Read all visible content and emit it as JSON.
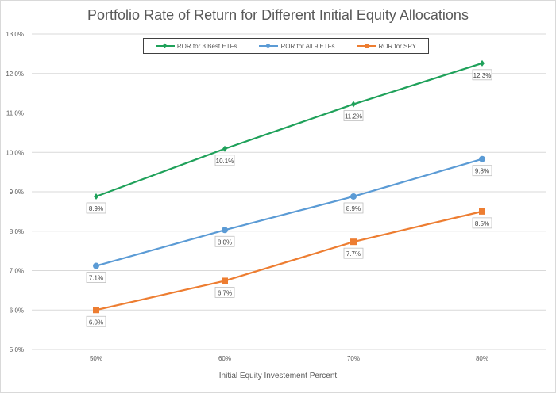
{
  "chart_data": {
    "type": "line",
    "title": "Portfolio Rate of Return for Different Initial Equity Allocations",
    "xlabel": "Initial Equity Investement Percent",
    "ylabel": "",
    "categories": [
      "50%",
      "60%",
      "70%",
      "80%"
    ],
    "ylim": [
      5.0,
      13.0
    ],
    "yticks": [
      "5.0%",
      "6.0%",
      "7.0%",
      "8.0%",
      "9.0%",
      "10.0%",
      "11.0%",
      "12.0%",
      "13.0%"
    ],
    "grid": true,
    "legend_position": "top",
    "series": [
      {
        "name": "ROR for 3 Best ETFs",
        "color": "#1fa15a",
        "marker": "diamond",
        "values": [
          8.88,
          10.09,
          11.22,
          12.26
        ],
        "labels": [
          "8.9%",
          "10.1%",
          "11.2%",
          "12.3%"
        ]
      },
      {
        "name": "ROR for All 9 ETFs",
        "color": "#5b9bd5",
        "marker": "circle",
        "values": [
          7.12,
          8.03,
          8.88,
          9.83
        ],
        "labels": [
          "7.1%",
          "8.0%",
          "8.9%",
          "9.8%"
        ]
      },
      {
        "name": "ROR for SPY",
        "color": "#ed7d31",
        "marker": "square",
        "values": [
          6.0,
          6.74,
          7.73,
          8.5
        ],
        "labels": [
          "6.0%",
          "6.7%",
          "7.7%",
          "8.5%"
        ]
      }
    ]
  }
}
